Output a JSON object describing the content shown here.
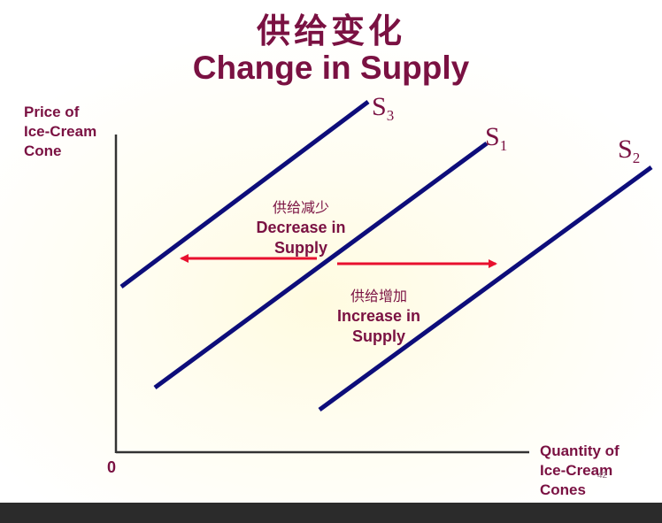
{
  "title_cn": "供给变化",
  "title_en": "Change in Supply",
  "y_axis": {
    "line1": "Price of",
    "line2": "Ice-Cream",
    "line3": "Cone"
  },
  "x_axis": {
    "line1": "Quantity of",
    "line2": "Ice-Cream",
    "line3": "Cones"
  },
  "origin": "0",
  "curves": [
    {
      "id": "S3",
      "letter": "S",
      "sub": "3"
    },
    {
      "id": "S1",
      "letter": "S",
      "sub": "1"
    },
    {
      "id": "S2",
      "letter": "S",
      "sub": "2"
    }
  ],
  "decrease": {
    "cn": "供给减少",
    "line1": "Decrease in",
    "line2": "Supply"
  },
  "increase": {
    "cn": "供给增加",
    "line1": "Increase in",
    "line2": "Supply"
  },
  "page_number": "42",
  "colors": {
    "title": "#7a1142",
    "curve": "#0d0d7a",
    "arrow": "#e8102e",
    "axis": "#333333"
  }
}
